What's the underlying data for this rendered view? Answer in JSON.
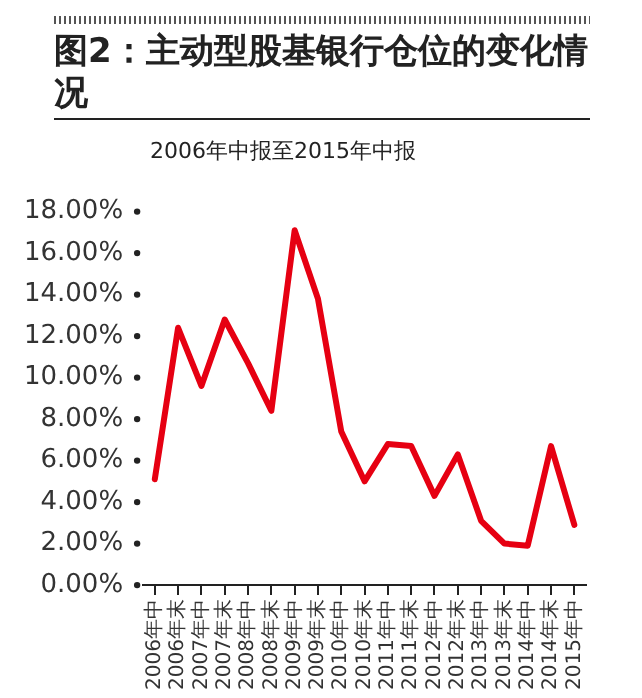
{
  "chart_data": {
    "type": "line",
    "title": "图2：主动型股基银行仓位的变化情况",
    "subtitle": "2006年中报至2015年中报",
    "categories": [
      "2006年中",
      "2006年末",
      "2007年中",
      "2007年末",
      "2008年中",
      "2008年末",
      "2009年中",
      "2009年末",
      "2010年中",
      "2010年末",
      "2011年中",
      "2011年末",
      "2012年中",
      "2012年末",
      "2013年中",
      "2013年末",
      "2014年中",
      "2014年末",
      "2015年中"
    ],
    "series": [
      {
        "color": "#e60012",
        "values": [
          5.1,
          12.4,
          9.6,
          12.8,
          10.7,
          8.4,
          17.1,
          13.8,
          7.4,
          5.0,
          6.8,
          6.7,
          4.3,
          6.3,
          3.1,
          2.0,
          1.9,
          6.7,
          2.9
        ]
      }
    ],
    "ylim": [
      0,
      18
    ],
    "yticks": [
      {
        "value": 0,
        "label": "0.00%"
      },
      {
        "value": 2,
        "label": "2.00%"
      },
      {
        "value": 4,
        "label": "4.00%"
      },
      {
        "value": 6,
        "label": "6.00%"
      },
      {
        "value": 8,
        "label": "8.00%"
      },
      {
        "value": 10,
        "label": "10.00%"
      },
      {
        "value": 12,
        "label": "12.00%"
      },
      {
        "value": 14,
        "label": "14.00%"
      },
      {
        "value": 16,
        "label": "16.00%"
      },
      {
        "value": 18,
        "label": "18.00%"
      }
    ],
    "grid": false,
    "legend": false,
    "marker": "none",
    "line_style": "solid"
  }
}
